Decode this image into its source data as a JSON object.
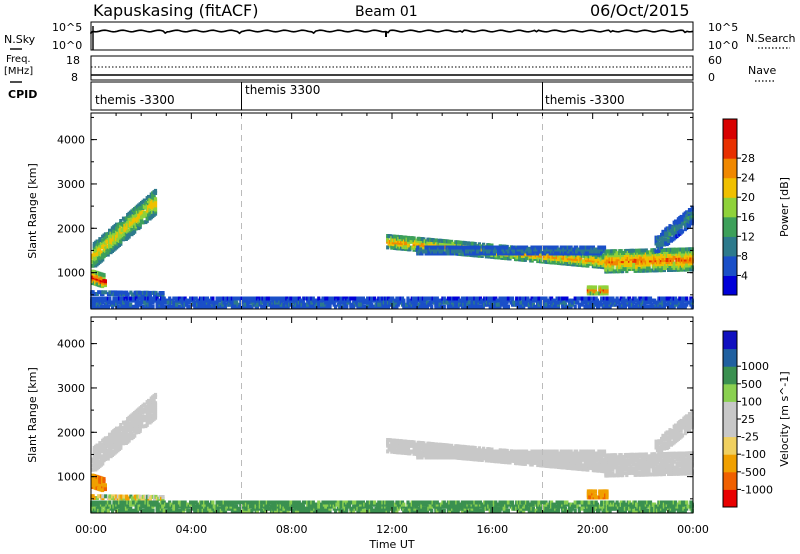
{
  "header": {
    "station": "Kapuskasing (fitACF)",
    "beam": "Beam 01",
    "date": "06/Oct/2015"
  },
  "nsky_panel": {
    "left_label": "N.Sky",
    "right_label": "N.Search",
    "left_ticks": [
      "10^5",
      "10^0"
    ],
    "right_ticks": [
      "10^5",
      "10^0"
    ]
  },
  "freq_panel": {
    "left_label_1": "Freq.",
    "left_label_2": "[MHz]",
    "right_label": "Nave",
    "left_ticks": [
      "18",
      "8"
    ],
    "right_ticks": [
      "60",
      "0"
    ]
  },
  "cpid_panel": {
    "label": "CPID",
    "segments": [
      {
        "label": "themis -3300",
        "start_hour": 0
      },
      {
        "label": "themis 3300",
        "start_hour": 6
      },
      {
        "label": "themis -3300",
        "start_hour": 18
      }
    ]
  },
  "x_axis": {
    "label": "Time UT",
    "ticks": [
      "00:00",
      "04:00",
      "08:00",
      "12:00",
      "16:00",
      "20:00",
      "00:00"
    ]
  },
  "power_panel": {
    "ylabel": "Slant Range [km]",
    "yticks": [
      "1000",
      "2000",
      "3000",
      "4000"
    ],
    "colorbar_label": "Power [dB]",
    "colorbar_ticks": [
      "4",
      "8",
      "12",
      "16",
      "20",
      "24",
      "28"
    ],
    "colors": [
      "#0000d8",
      "#1a4fc8",
      "#2d7a8c",
      "#3da05a",
      "#8fd23a",
      "#f0c000",
      "#f08800",
      "#e83000",
      "#d80000"
    ]
  },
  "velocity_panel": {
    "ylabel": "Slant Range [km]",
    "yticks": [
      "1000",
      "2000",
      "3000",
      "4000"
    ],
    "colorbar_label": "Velocity [m s^-1]",
    "colorbar_ticks": [
      "-1000",
      "-500",
      "-100",
      "-25",
      "25",
      "100",
      "500",
      "1000"
    ],
    "colors": [
      "#e80000",
      "#f06000",
      "#f0a000",
      "#f0d060",
      "#c8c8c8",
      "#c8c8c8",
      "#8ad050",
      "#3a9050",
      "#2060a0",
      "#1010c0"
    ]
  },
  "chart_data": {
    "type": "heatmap",
    "x_unit": "hours UT",
    "x_range": [
      0,
      24
    ],
    "y_unit": "km",
    "y_range": [
      180,
      4600
    ],
    "echo_regions": [
      {
        "name": "morning-ionospheric",
        "x_start": 0.05,
        "x_end": 2.6,
        "y_start_center": 1350,
        "y_end_center": 2600,
        "y_halfwidth": 280,
        "power_db": 18,
        "velocity": 0
      },
      {
        "name": "morning-near-range",
        "x_start": 0.05,
        "x_end": 0.6,
        "y_start_center": 900,
        "y_end_center": 800,
        "y_halfwidth": 150,
        "power_db": 26,
        "velocity": -500
      },
      {
        "name": "morning-groundscatter-band",
        "x_start": 0.0,
        "x_end": 2.9,
        "y_start_center": 540,
        "y_end_center": 520,
        "y_halfwidth": 40,
        "power_db": 8,
        "velocity": -100
      },
      {
        "name": "night-near-range",
        "x_start": 0.0,
        "x_end": 24.0,
        "y_start_center": 300,
        "y_end_center": 300,
        "y_halfwidth": 140,
        "power_db": 6,
        "velocity": 100
      },
      {
        "name": "evening-ionospheric",
        "x_start": 11.8,
        "x_end": 20.5,
        "y_start_center": 1700,
        "y_end_center": 1250,
        "y_halfwidth": 150,
        "power_db": 20,
        "velocity": 0
      },
      {
        "name": "evening-upper-band",
        "x_start": 13.0,
        "x_end": 20.5,
        "y_start_center": 1500,
        "y_end_center": 1500,
        "y_halfwidth": 90,
        "power_db": 8,
        "velocity": 0
      },
      {
        "name": "late-ionospheric",
        "x_start": 20.5,
        "x_end": 24.0,
        "y_start_center": 1250,
        "y_end_center": 1300,
        "y_halfwidth": 250,
        "power_db": 22,
        "velocity": 0
      },
      {
        "name": "late-rise",
        "x_start": 22.5,
        "x_end": 24.0,
        "y_start_center": 1600,
        "y_end_center": 2300,
        "y_halfwidth": 200,
        "power_db": 9,
        "velocity": 0
      },
      {
        "name": "pre-midnight-patch",
        "x_start": 19.8,
        "x_end": 20.6,
        "y_start_center": 600,
        "y_end_center": 600,
        "y_halfwidth": 90,
        "power_db": 26,
        "velocity": -500
      }
    ]
  }
}
